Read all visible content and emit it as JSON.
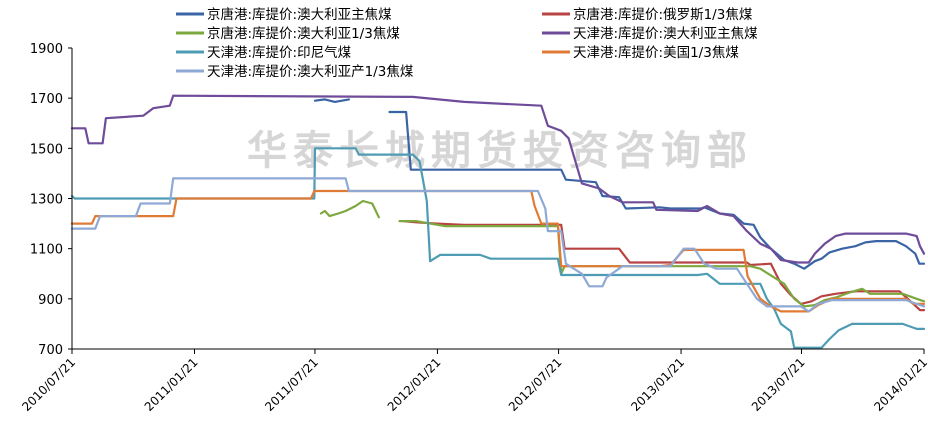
{
  "watermark": "华泰长城期货投资咨询部",
  "chart_data": {
    "type": "line",
    "title": "",
    "xlabel": "",
    "ylabel": "",
    "ylim": [
      700,
      1900
    ],
    "yticks": [
      700,
      900,
      1100,
      1300,
      1500,
      1700,
      1900
    ],
    "xlim": [
      "2010-07-21",
      "2014-01-21"
    ],
    "xticks": [
      "2010/07/21",
      "2011/01/21",
      "2011/07/21",
      "2012/01/21",
      "2012/07/21",
      "2013/01/21",
      "2013/07/21",
      "2014/01/21"
    ],
    "grid": false,
    "legend_position": "top",
    "series": [
      {
        "name": "京唐港:库提价:澳大利亚主焦煤",
        "color": "#3a64a4",
        "segments": [
          [
            [
              "2011-07-21",
              1690
            ],
            [
              "2011-08-05",
              1695
            ],
            [
              "2011-08-20",
              1685
            ],
            [
              "2011-09-10",
              1695
            ]
          ],
          [
            [
              "2011-11-10",
              1645
            ],
            [
              "2011-12-05",
              1645
            ],
            [
              "2011-12-12",
              1415
            ],
            [
              "2012-07-25",
              1415
            ],
            [
              "2012-08-01",
              1375
            ],
            [
              "2012-09-15",
              1365
            ],
            [
              "2012-09-25",
              1310
            ],
            [
              "2012-10-20",
              1305
            ],
            [
              "2012-10-30",
              1260
            ],
            [
              "2012-12-20",
              1265
            ],
            [
              "2013-01-05",
              1260
            ],
            [
              "2013-02-20",
              1260
            ],
            [
              "2013-02-25",
              1265
            ],
            [
              "2013-03-20",
              1240
            ],
            [
              "2013-04-10",
              1235
            ],
            [
              "2013-04-25",
              1200
            ],
            [
              "2013-05-10",
              1195
            ],
            [
              "2013-05-20",
              1145
            ],
            [
              "2013-06-05",
              1100
            ],
            [
              "2013-06-25",
              1055
            ],
            [
              "2013-07-10",
              1040
            ],
            [
              "2013-07-25",
              1020
            ],
            [
              "2013-08-10",
              1050
            ],
            [
              "2013-08-20",
              1060
            ],
            [
              "2013-09-01",
              1085
            ],
            [
              "2013-09-20",
              1100
            ],
            [
              "2013-10-10",
              1110
            ],
            [
              "2013-10-25",
              1125
            ],
            [
              "2013-11-10",
              1130
            ],
            [
              "2013-12-10",
              1130
            ],
            [
              "2013-12-25",
              1110
            ],
            [
              "2014-01-08",
              1080
            ],
            [
              "2014-01-14",
              1040
            ],
            [
              "2014-01-21",
              1040
            ]
          ]
        ]
      },
      {
        "name": "京唐港:库提价:俄罗斯1/3焦煤",
        "color": "#b84343",
        "segments": [
          [
            [
              "2011-12-01",
              1210
            ],
            [
              "2011-12-20",
              1205
            ],
            [
              "2012-01-20",
              1200
            ],
            [
              "2012-03-01",
              1195
            ],
            [
              "2012-07-10",
              1195
            ],
            [
              "2012-07-25",
              1195
            ],
            [
              "2012-07-30",
              1100
            ],
            [
              "2012-10-20",
              1100
            ],
            [
              "2012-11-05",
              1045
            ],
            [
              "2013-04-30",
              1045
            ],
            [
              "2013-05-05",
              1035
            ],
            [
              "2013-06-05",
              1040
            ],
            [
              "2013-06-20",
              960
            ],
            [
              "2013-07-05",
              915
            ],
            [
              "2013-07-20",
              880
            ],
            [
              "2013-08-05",
              890
            ],
            [
              "2013-08-20",
              910
            ],
            [
              "2013-09-10",
              920
            ],
            [
              "2013-10-10",
              930
            ],
            [
              "2013-11-10",
              930
            ],
            [
              "2013-12-15",
              930
            ],
            [
              "2014-01-05",
              880
            ],
            [
              "2014-01-15",
              855
            ],
            [
              "2014-01-21",
              855
            ]
          ]
        ]
      },
      {
        "name": "京唐港:库提价:澳大利亚1/3焦煤",
        "color": "#7da83e",
        "segments": [
          [
            [
              "2011-07-30",
              1240
            ],
            [
              "2011-08-05",
              1250
            ],
            [
              "2011-08-12",
              1230
            ],
            [
              "2011-08-25",
              1240
            ],
            [
              "2011-09-05",
              1250
            ],
            [
              "2011-09-20",
              1270
            ],
            [
              "2011-10-01",
              1290
            ],
            [
              "2011-10-15",
              1280
            ],
            [
              "2011-10-25",
              1225
            ]
          ],
          [
            [
              "2011-11-25",
              1210
            ],
            [
              "2011-12-20",
              1210
            ],
            [
              "2012-01-10",
              1200
            ],
            [
              "2012-02-01",
              1190
            ],
            [
              "2012-07-20",
              1190
            ],
            [
              "2012-07-25",
              1000
            ],
            [
              "2012-07-30",
              1030
            ],
            [
              "2012-08-10",
              1030
            ],
            [
              "2013-05-05",
              1030
            ],
            [
              "2013-05-20",
              1020
            ],
            [
              "2013-06-25",
              960
            ],
            [
              "2013-07-10",
              900
            ],
            [
              "2013-07-25",
              870
            ],
            [
              "2013-08-10",
              875
            ],
            [
              "2013-08-25",
              895
            ],
            [
              "2013-09-10",
              905
            ],
            [
              "2013-10-01",
              925
            ],
            [
              "2013-10-20",
              940
            ],
            [
              "2013-11-01",
              920
            ],
            [
              "2013-12-20",
              920
            ],
            [
              "2014-01-10",
              900
            ],
            [
              "2014-01-21",
              890
            ]
          ]
        ]
      },
      {
        "name": "天津港:库提价:澳大利亚主焦煤",
        "color": "#6e4c9a",
        "segments": [
          [
            [
              "2010-07-21",
              1580
            ],
            [
              "2010-08-10",
              1580
            ],
            [
              "2010-08-15",
              1520
            ],
            [
              "2010-09-05",
              1520
            ],
            [
              "2010-09-10",
              1620
            ],
            [
              "2010-11-05",
              1630
            ],
            [
              "2010-11-20",
              1660
            ],
            [
              "2010-12-15",
              1670
            ],
            [
              "2010-12-20",
              1710
            ],
            [
              "2011-12-15",
              1705
            ],
            [
              "2012-03-01",
              1685
            ],
            [
              "2012-06-25",
              1670
            ],
            [
              "2012-07-05",
              1590
            ],
            [
              "2012-07-25",
              1570
            ],
            [
              "2012-08-05",
              1540
            ],
            [
              "2012-08-25",
              1360
            ],
            [
              "2012-09-20",
              1340
            ],
            [
              "2012-10-05",
              1310
            ],
            [
              "2012-10-25",
              1285
            ],
            [
              "2012-12-10",
              1285
            ],
            [
              "2012-12-15",
              1255
            ],
            [
              "2013-02-15",
              1250
            ],
            [
              "2013-03-01",
              1270
            ],
            [
              "2013-03-20",
              1240
            ],
            [
              "2013-04-10",
              1230
            ],
            [
              "2013-04-30",
              1170
            ],
            [
              "2013-05-20",
              1120
            ],
            [
              "2013-06-05",
              1100
            ],
            [
              "2013-06-20",
              1055
            ],
            [
              "2013-07-15",
              1045
            ],
            [
              "2013-08-01",
              1045
            ],
            [
              "2013-08-10",
              1080
            ],
            [
              "2013-08-25",
              1120
            ],
            [
              "2013-09-10",
              1150
            ],
            [
              "2013-09-25",
              1160
            ],
            [
              "2013-12-25",
              1160
            ],
            [
              "2014-01-10",
              1150
            ],
            [
              "2014-01-15",
              1110
            ],
            [
              "2014-01-21",
              1080
            ]
          ]
        ]
      },
      {
        "name": "天津港:库提价:印尼气煤",
        "color": "#4e9cb4",
        "segments": [
          [
            [
              "2010-07-21",
              1310
            ],
            [
              "2010-07-25",
              1300
            ],
            [
              "2011-07-20",
              1300
            ],
            [
              "2011-07-21",
              1500
            ],
            [
              "2011-09-20",
              1500
            ],
            [
              "2011-09-25",
              1475
            ],
            [
              "2011-12-15",
              1475
            ],
            [
              "2011-12-25",
              1450
            ],
            [
              "2012-01-05",
              1290
            ],
            [
              "2012-01-10",
              1050
            ],
            [
              "2012-01-25",
              1075
            ],
            [
              "2012-03-25",
              1075
            ],
            [
              "2012-04-10",
              1060
            ],
            [
              "2012-07-20",
              1060
            ],
            [
              "2012-07-25",
              995
            ],
            [
              "2013-02-15",
              995
            ],
            [
              "2013-03-01",
              1000
            ],
            [
              "2013-03-20",
              960
            ],
            [
              "2013-05-20",
              960
            ],
            [
              "2013-05-30",
              900
            ],
            [
              "2013-06-10",
              860
            ],
            [
              "2013-06-20",
              800
            ],
            [
              "2013-07-05",
              770
            ],
            [
              "2013-07-10",
              705
            ],
            [
              "2013-08-20",
              705
            ],
            [
              "2013-09-01",
              740
            ],
            [
              "2013-09-15",
              775
            ],
            [
              "2013-10-05",
              800
            ],
            [
              "2013-12-20",
              800
            ],
            [
              "2014-01-10",
              780
            ],
            [
              "2014-01-21",
              780
            ]
          ]
        ]
      },
      {
        "name": "天津港:库提价:美国1/3焦煤",
        "color": "#e07b35",
        "segments": [
          [
            [
              "2010-07-21",
              1200
            ],
            [
              "2010-08-20",
              1200
            ],
            [
              "2010-08-25",
              1230
            ],
            [
              "2010-12-20",
              1230
            ],
            [
              "2010-12-25",
              1300
            ],
            [
              "2011-07-15",
              1300
            ],
            [
              "2011-07-20",
              1330
            ],
            [
              "2012-06-10",
              1330
            ],
            [
              "2012-06-15",
              1270
            ],
            [
              "2012-06-25",
              1200
            ],
            [
              "2012-07-20",
              1200
            ],
            [
              "2012-07-25",
              1030
            ],
            [
              "2012-12-20",
              1030
            ],
            [
              "2013-01-05",
              1035
            ],
            [
              "2013-01-25",
              1095
            ],
            [
              "2013-04-25",
              1095
            ],
            [
              "2013-05-01",
              990
            ],
            [
              "2013-05-20",
              900
            ],
            [
              "2013-06-05",
              870
            ],
            [
              "2013-06-20",
              850
            ],
            [
              "2013-08-01",
              850
            ],
            [
              "2013-08-15",
              875
            ],
            [
              "2013-09-05",
              900
            ],
            [
              "2013-12-25",
              900
            ],
            [
              "2014-01-05",
              880
            ],
            [
              "2014-01-21",
              880
            ]
          ]
        ]
      },
      {
        "name": "天津港:库提价:澳大利亚产1/3焦煤",
        "color": "#8fa9d6",
        "segments": [
          [
            [
              "2010-07-21",
              1180
            ],
            [
              "2010-08-25",
              1180
            ],
            [
              "2010-09-01",
              1230
            ],
            [
              "2010-10-25",
              1230
            ],
            [
              "2010-11-01",
              1280
            ],
            [
              "2010-12-15",
              1280
            ],
            [
              "2010-12-20",
              1380
            ],
            [
              "2011-09-05",
              1380
            ],
            [
              "2011-09-10",
              1330
            ],
            [
              "2012-06-20",
              1330
            ],
            [
              "2012-07-01",
              1260
            ],
            [
              "2012-07-05",
              1170
            ],
            [
              "2012-07-25",
              1170
            ],
            [
              "2012-08-01",
              1040
            ],
            [
              "2012-08-25",
              1000
            ],
            [
              "2012-09-05",
              950
            ],
            [
              "2012-09-25",
              950
            ],
            [
              "2012-10-01",
              985
            ],
            [
              "2012-10-25",
              1030
            ],
            [
              "2013-01-05",
              1030
            ],
            [
              "2013-01-25",
              1100
            ],
            [
              "2013-02-10",
              1100
            ],
            [
              "2013-02-25",
              1040
            ],
            [
              "2013-03-15",
              1020
            ],
            [
              "2013-04-15",
              1020
            ],
            [
              "2013-04-30",
              960
            ],
            [
              "2013-05-15",
              900
            ],
            [
              "2013-05-30",
              870
            ],
            [
              "2013-07-20",
              870
            ],
            [
              "2013-08-01",
              850
            ],
            [
              "2013-08-15",
              880
            ],
            [
              "2013-09-05",
              895
            ],
            [
              "2013-12-25",
              895
            ],
            [
              "2014-01-10",
              880
            ],
            [
              "2014-01-21",
              870
            ]
          ]
        ]
      }
    ]
  }
}
